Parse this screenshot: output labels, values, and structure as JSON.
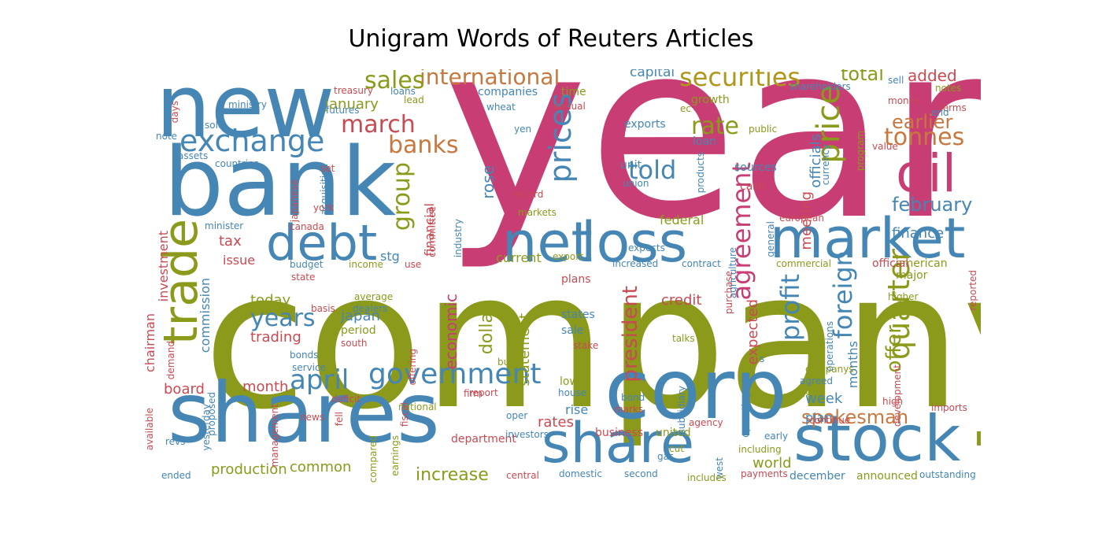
{
  "title": "Unigram Words of Reuters Articles",
  "colors": {
    "pink": "#c83e74",
    "blue": "#4586b4",
    "olive": "#8b9a1a",
    "red": "#c84a52",
    "gold": "#b0961a",
    "orange": "#c8783e"
  },
  "words": [
    {
      "text": "year",
      "color": "pink"
    },
    {
      "text": "company",
      "color": "olive"
    },
    {
      "text": "new",
      "color": "blue"
    },
    {
      "text": "bank",
      "color": "blue"
    },
    {
      "text": "shares",
      "color": "blue"
    },
    {
      "text": "corp",
      "color": "blue"
    },
    {
      "text": "stock",
      "color": "blue"
    },
    {
      "text": "share",
      "color": "blue"
    },
    {
      "text": "market",
      "color": "blue"
    },
    {
      "text": "loss",
      "color": "blue"
    },
    {
      "text": "net",
      "color": "blue"
    },
    {
      "text": "oil",
      "color": "pink"
    },
    {
      "text": "debt",
      "color": "blue"
    },
    {
      "text": "trade",
      "color": "olive"
    },
    {
      "text": "exchange",
      "color": "blue"
    },
    {
      "text": "government",
      "color": "blue"
    },
    {
      "text": "april",
      "color": "blue"
    },
    {
      "text": "price",
      "color": "olive"
    },
    {
      "text": "prices",
      "color": "blue"
    },
    {
      "text": "securities",
      "color": "gold"
    },
    {
      "text": "international",
      "color": "orange"
    },
    {
      "text": "agreement",
      "color": "pink"
    },
    {
      "text": "rate",
      "color": "olive"
    },
    {
      "text": "tonnes",
      "color": "orange"
    },
    {
      "text": "quarter",
      "color": "olive"
    },
    {
      "text": "foreign",
      "color": "blue"
    },
    {
      "text": "profit",
      "color": "blue"
    },
    {
      "text": "told",
      "color": "blue"
    },
    {
      "text": "banks",
      "color": "orange"
    },
    {
      "text": "years",
      "color": "blue"
    },
    {
      "text": "march",
      "color": "red"
    },
    {
      "text": "sales",
      "color": "olive"
    },
    {
      "text": "group",
      "color": "olive"
    },
    {
      "text": "spokesman",
      "color": "orange"
    },
    {
      "text": "president",
      "color": "red"
    },
    {
      "text": "earlier",
      "color": "orange"
    },
    {
      "text": "february",
      "color": "blue"
    },
    {
      "text": "total",
      "color": "olive"
    },
    {
      "text": "added",
      "color": "red"
    },
    {
      "text": "increase",
      "color": "olive"
    },
    {
      "text": "production",
      "color": "olive"
    },
    {
      "text": "common",
      "color": "olive"
    },
    {
      "text": "offer",
      "color": "olive"
    },
    {
      "text": "expected",
      "color": "red"
    },
    {
      "text": "officials",
      "color": "blue"
    },
    {
      "text": "rose",
      "color": "blue"
    },
    {
      "text": "january",
      "color": "olive"
    },
    {
      "text": "today",
      "color": "olive"
    },
    {
      "text": "japan",
      "color": "blue"
    },
    {
      "text": "trading",
      "color": "red"
    },
    {
      "text": "dollar",
      "color": "olive"
    },
    {
      "text": "economic",
      "color": "pink"
    },
    {
      "text": "statement",
      "color": "olive"
    },
    {
      "text": "credit",
      "color": "red"
    },
    {
      "text": "rates",
      "color": "red"
    },
    {
      "text": "month",
      "color": "red"
    },
    {
      "text": "board",
      "color": "red"
    },
    {
      "text": "week",
      "color": "blue"
    },
    {
      "text": "world",
      "color": "olive"
    },
    {
      "text": "meeting",
      "color": "red"
    },
    {
      "text": "finance",
      "color": "blue"
    },
    {
      "text": "federal",
      "color": "olive"
    },
    {
      "text": "capital",
      "color": "blue"
    },
    {
      "text": "tax",
      "color": "red"
    },
    {
      "text": "stg",
      "color": "blue"
    },
    {
      "text": "financial",
      "color": "red"
    },
    {
      "text": "current",
      "color": "olive"
    },
    {
      "text": "commission",
      "color": "blue"
    },
    {
      "text": "chairman",
      "color": "red"
    },
    {
      "text": "investment",
      "color": "red"
    },
    {
      "text": "months",
      "color": "blue"
    },
    {
      "text": "plan",
      "color": "blue"
    },
    {
      "text": "issue",
      "color": "red"
    },
    {
      "text": "major",
      "color": "olive"
    },
    {
      "text": "american",
      "color": "olive"
    },
    {
      "text": "official",
      "color": "red"
    },
    {
      "text": "period",
      "color": "olive"
    },
    {
      "text": "department",
      "color": "red"
    },
    {
      "text": "announced",
      "color": "olive"
    },
    {
      "text": "december",
      "color": "blue"
    },
    {
      "text": "business",
      "color": "red"
    },
    {
      "text": "united",
      "color": "olive"
    },
    {
      "text": "states",
      "color": "blue"
    },
    {
      "text": "sale",
      "color": "blue"
    },
    {
      "text": "plans",
      "color": "red"
    },
    {
      "text": "lower",
      "color": "olive"
    },
    {
      "text": "rise",
      "color": "blue"
    },
    {
      "text": "exports",
      "color": "blue"
    },
    {
      "text": "growth",
      "color": "olive"
    },
    {
      "text": "loan",
      "color": "blue"
    },
    {
      "text": "sources",
      "color": "blue"
    },
    {
      "text": "cash",
      "color": "red"
    },
    {
      "text": "unit",
      "color": "blue"
    },
    {
      "text": "companies",
      "color": "blue"
    },
    {
      "text": "time",
      "color": "olive"
    },
    {
      "text": "committee",
      "color": "red"
    },
    {
      "text": "industry",
      "color": "blue"
    },
    {
      "text": "markets",
      "color": "olive"
    },
    {
      "text": "minister",
      "color": "blue"
    },
    {
      "text": "budget",
      "color": "blue"
    },
    {
      "text": "state",
      "color": "red"
    },
    {
      "text": "compared",
      "color": "olive"
    },
    {
      "text": "earnings",
      "color": "olive"
    },
    {
      "text": "national",
      "color": "olive"
    },
    {
      "text": "report",
      "color": "red"
    },
    {
      "text": "offering",
      "color": "red"
    },
    {
      "text": "management",
      "color": "red"
    },
    {
      "text": "yesterday",
      "color": "blue"
    },
    {
      "text": "fell",
      "color": "red"
    },
    {
      "text": "south",
      "color": "red"
    },
    {
      "text": "bonds",
      "color": "blue"
    },
    {
      "text": "average",
      "color": "olive"
    },
    {
      "text": "dealers",
      "color": "blue"
    },
    {
      "text": "basis",
      "color": "red"
    },
    {
      "text": "operations",
      "color": "blue"
    },
    {
      "text": "companys",
      "color": "olive"
    },
    {
      "text": "reported",
      "color": "red"
    },
    {
      "text": "agreed",
      "color": "blue"
    },
    {
      "text": "june",
      "color": "olive"
    },
    {
      "text": "continue",
      "color": "red"
    },
    {
      "text": "imports",
      "color": "red"
    },
    {
      "text": "development",
      "color": "red"
    },
    {
      "text": "high",
      "color": "red"
    },
    {
      "text": "higher",
      "color": "olive"
    },
    {
      "text": "commercial",
      "color": "olive"
    },
    {
      "text": "european",
      "color": "red"
    },
    {
      "text": "general",
      "color": "blue"
    },
    {
      "text": "agriculture",
      "color": "blue"
    },
    {
      "text": "purchase",
      "color": "red"
    },
    {
      "text": "contract",
      "color": "blue"
    },
    {
      "text": "increased",
      "color": "blue"
    },
    {
      "text": "export",
      "color": "olive"
    },
    {
      "text": "talks",
      "color": "olive"
    },
    {
      "text": "stake",
      "color": "red"
    },
    {
      "text": "house",
      "color": "blue"
    },
    {
      "text": "bond",
      "color": "blue"
    },
    {
      "text": "marks",
      "color": "red"
    },
    {
      "text": "subsidiary",
      "color": "blue"
    },
    {
      "text": "agency",
      "color": "red"
    },
    {
      "text": "operating",
      "color": "blue"
    },
    {
      "text": "including",
      "color": "olive"
    },
    {
      "text": "early",
      "color": "blue"
    },
    {
      "text": "west",
      "color": "blue"
    },
    {
      "text": "cut",
      "color": "olive"
    },
    {
      "text": "gas",
      "color": "blue"
    },
    {
      "text": "payments",
      "color": "red"
    },
    {
      "text": "includes",
      "color": "olive"
    },
    {
      "text": "second",
      "color": "blue"
    },
    {
      "text": "domestic",
      "color": "blue"
    },
    {
      "text": "central",
      "color": "red"
    },
    {
      "text": "outstanding",
      "color": "blue"
    },
    {
      "text": "investors",
      "color": "blue"
    },
    {
      "text": "fiscal",
      "color": "red"
    },
    {
      "text": "oper",
      "color": "blue"
    },
    {
      "text": "firm",
      "color": "red"
    },
    {
      "text": "buy",
      "color": "olive"
    },
    {
      "text": "use",
      "color": "red"
    },
    {
      "text": "income",
      "color": "olive"
    },
    {
      "text": "deficit",
      "color": "red"
    },
    {
      "text": "service",
      "color": "blue"
    },
    {
      "text": "news",
      "color": "red"
    },
    {
      "text": "proposed",
      "color": "blue"
    },
    {
      "text": "demand",
      "color": "red"
    },
    {
      "text": "available",
      "color": "red"
    },
    {
      "text": "revs",
      "color": "blue"
    },
    {
      "text": "ended",
      "color": "blue"
    },
    {
      "text": "canada",
      "color": "red"
    },
    {
      "text": "york",
      "color": "red"
    },
    {
      "text": "acquisition",
      "color": "blue"
    },
    {
      "text": "japanese",
      "color": "red"
    },
    {
      "text": "countries",
      "color": "blue"
    },
    {
      "text": "set",
      "color": "red"
    },
    {
      "text": "assets",
      "color": "blue"
    },
    {
      "text": "note",
      "color": "blue"
    },
    {
      "text": "sold",
      "color": "blue"
    },
    {
      "text": "days",
      "color": "red"
    },
    {
      "text": "ministry",
      "color": "blue"
    },
    {
      "text": "futures",
      "color": "blue"
    },
    {
      "text": "treasury",
      "color": "red"
    },
    {
      "text": "loans",
      "color": "blue"
    },
    {
      "text": "lead",
      "color": "olive"
    },
    {
      "text": "wheat",
      "color": "blue"
    },
    {
      "text": "yen",
      "color": "blue"
    },
    {
      "text": "annual",
      "color": "red"
    },
    {
      "text": "ec",
      "color": "olive"
    },
    {
      "text": "record",
      "color": "red"
    },
    {
      "text": "union",
      "color": "blue"
    },
    {
      "text": "products",
      "color": "blue"
    },
    {
      "text": "public",
      "color": "olive"
    },
    {
      "text": "currency",
      "color": "blue"
    },
    {
      "text": "program",
      "color": "olive"
    },
    {
      "text": "value",
      "color": "red"
    },
    {
      "text": "expects",
      "color": "blue"
    },
    {
      "text": "shareholders",
      "color": "blue"
    },
    {
      "text": "sell",
      "color": "blue"
    },
    {
      "text": "notes",
      "color": "olive"
    },
    {
      "text": "money",
      "color": "red"
    },
    {
      "text": "terms",
      "color": "red"
    },
    {
      "text": "end",
      "color": "blue"
    },
    {
      "text": "s",
      "color": "blue"
    }
  ]
}
